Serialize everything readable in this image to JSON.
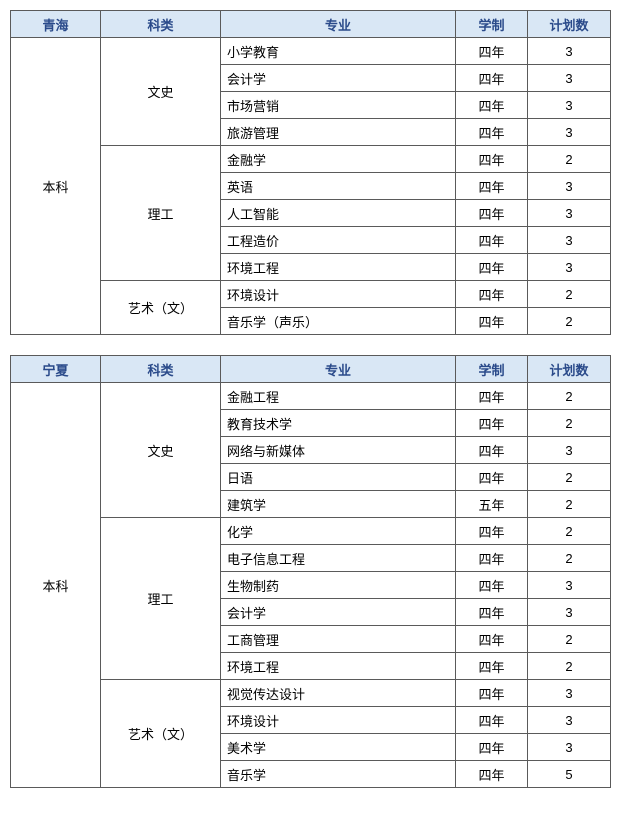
{
  "headers": {
    "category": "科类",
    "major": "专业",
    "duration": "学制",
    "count": "计划数"
  },
  "tables": [
    {
      "province": "青海",
      "level": "本科",
      "rows": [
        {
          "cat": "文史",
          "catspan": 4,
          "major": "小学教育",
          "dur": "四年",
          "cnt": "3"
        },
        {
          "major": "会计学",
          "dur": "四年",
          "cnt": "3"
        },
        {
          "major": "市场营销",
          "dur": "四年",
          "cnt": "3"
        },
        {
          "major": "旅游管理",
          "dur": "四年",
          "cnt": "3"
        },
        {
          "cat": "理工",
          "catspan": 5,
          "major": "金融学",
          "dur": "四年",
          "cnt": "2"
        },
        {
          "major": "英语",
          "dur": "四年",
          "cnt": "3"
        },
        {
          "major": "人工智能",
          "dur": "四年",
          "cnt": "3"
        },
        {
          "major": "工程造价",
          "dur": "四年",
          "cnt": "3"
        },
        {
          "major": "环境工程",
          "dur": "四年",
          "cnt": "3"
        },
        {
          "cat": "艺术（文）",
          "catspan": 2,
          "major": "环境设计",
          "dur": "四年",
          "cnt": "2"
        },
        {
          "major": "音乐学（声乐）",
          "dur": "四年",
          "cnt": "2"
        }
      ]
    },
    {
      "province": "宁夏",
      "level": "本科",
      "rows": [
        {
          "cat": "文史",
          "catspan": 5,
          "major": "金融工程",
          "dur": "四年",
          "cnt": "2"
        },
        {
          "major": "教育技术学",
          "dur": "四年",
          "cnt": "2"
        },
        {
          "major": "网络与新媒体",
          "dur": "四年",
          "cnt": "3"
        },
        {
          "major": "日语",
          "dur": "四年",
          "cnt": "2"
        },
        {
          "major": "建筑学",
          "dur": "五年",
          "cnt": "2"
        },
        {
          "cat": "理工",
          "catspan": 6,
          "major": "化学",
          "dur": "四年",
          "cnt": "2"
        },
        {
          "major": "电子信息工程",
          "dur": "四年",
          "cnt": "2"
        },
        {
          "major": "生物制药",
          "dur": "四年",
          "cnt": "3"
        },
        {
          "major": "会计学",
          "dur": "四年",
          "cnt": "3"
        },
        {
          "major": "工商管理",
          "dur": "四年",
          "cnt": "2"
        },
        {
          "major": "环境工程",
          "dur": "四年",
          "cnt": "2"
        },
        {
          "cat": "艺术（文）",
          "catspan": 4,
          "major": "视觉传达设计",
          "dur": "四年",
          "cnt": "3"
        },
        {
          "major": "环境设计",
          "dur": "四年",
          "cnt": "3"
        },
        {
          "major": "美术学",
          "dur": "四年",
          "cnt": "3"
        },
        {
          "major": "音乐学",
          "dur": "四年",
          "cnt": "5"
        }
      ]
    }
  ]
}
